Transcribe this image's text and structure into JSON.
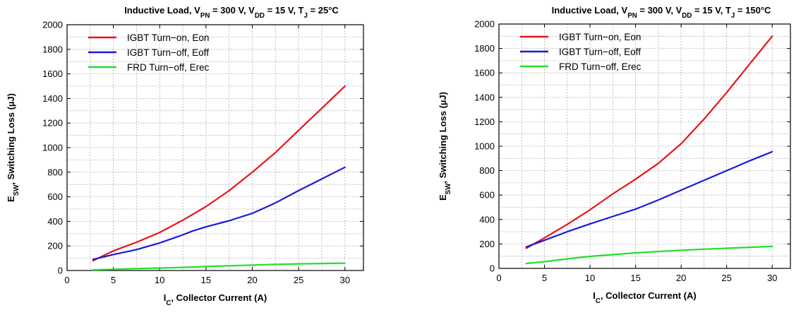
{
  "chart_data": [
    {
      "type": "line",
      "title": "Inductive Load, VPN = 300 V, VDD = 15 V, TJ = 25°C",
      "title_parts": [
        {
          "text": "Inductive Load, V",
          "sub": ""
        },
        {
          "text": "",
          "sub": "PN"
        },
        {
          "text": " = 300 V, V",
          "sub": ""
        },
        {
          "text": "",
          "sub": "DD"
        },
        {
          "text": " = 15 V, T",
          "sub": ""
        },
        {
          "text": "",
          "sub": "J"
        },
        {
          "text": " = 25°C",
          "sub": ""
        }
      ],
      "xlabel": "IC, Collector Current (A)",
      "xlabel_parts": [
        {
          "text": "I",
          "sub": ""
        },
        {
          "text": "",
          "sub": "C"
        },
        {
          "text": ", Collector Current (A)",
          "sub": ""
        }
      ],
      "ylabel": "ESW, Switching Loss (µJ)",
      "ylabel_parts": [
        {
          "text": "E",
          "sub": ""
        },
        {
          "text": "",
          "sub": "SW"
        },
        {
          "text": ", Switching Loss (µJ)",
          "sub": ""
        }
      ],
      "xlim": [
        0,
        32
      ],
      "ylim": [
        0,
        2000
      ],
      "x_ticks": [
        0,
        5,
        10,
        15,
        20,
        25,
        30
      ],
      "y_ticks": [
        0,
        200,
        400,
        600,
        800,
        1000,
        1200,
        1400,
        1600,
        1800,
        2000
      ],
      "grid": true,
      "legend_position": "top-left",
      "series": [
        {
          "name": "IGBT Turn−on, Eon",
          "color": "#e8141b",
          "x": [
            2.8,
            5,
            7.5,
            10,
            12.5,
            15,
            17.5,
            20,
            22.5,
            25,
            27.5,
            30
          ],
          "y": [
            80,
            160,
            230,
            310,
            410,
            520,
            650,
            800,
            960,
            1140,
            1320,
            1500
          ]
        },
        {
          "name": "IGBT Turn−off, Eoff",
          "color": "#1b1bd8",
          "x": [
            2.8,
            5,
            7.5,
            10,
            12.5,
            13.5,
            15,
            17.5,
            20,
            22.5,
            25,
            27.5,
            30
          ],
          "y": [
            90,
            130,
            170,
            225,
            290,
            320,
            355,
            405,
            465,
            550,
            650,
            745,
            840
          ]
        },
        {
          "name": "FRD Turn−off, Erec",
          "color": "#22e02a",
          "x": [
            2.8,
            5,
            7.5,
            10,
            12.5,
            15,
            17.5,
            20,
            22.5,
            25,
            27.5,
            30
          ],
          "y": [
            5,
            10,
            15,
            20,
            25,
            32,
            38,
            44,
            50,
            54,
            57,
            60
          ]
        }
      ]
    },
    {
      "type": "line",
      "title": "Inductive Load, VPN = 300 V, VDD = 15 V, TJ = 150°C",
      "title_parts": [
        {
          "text": "Inductive Load, V",
          "sub": ""
        },
        {
          "text": "",
          "sub": "PN"
        },
        {
          "text": " = 300 V, V",
          "sub": ""
        },
        {
          "text": "",
          "sub": "DD"
        },
        {
          "text": " = 15 V, T",
          "sub": ""
        },
        {
          "text": "",
          "sub": "J"
        },
        {
          "text": " = 150°C",
          "sub": ""
        }
      ],
      "xlabel": "IC, Collector Current (A)",
      "xlabel_parts": [
        {
          "text": "I",
          "sub": ""
        },
        {
          "text": "",
          "sub": "C"
        },
        {
          "text": ", Collector Current (A)",
          "sub": ""
        }
      ],
      "ylabel": "ESW, Switching Loss (µJ)",
      "ylabel_parts": [
        {
          "text": "E",
          "sub": ""
        },
        {
          "text": "",
          "sub": "SW"
        },
        {
          "text": ", Switching Loss (µJ)",
          "sub": ""
        }
      ],
      "xlim": [
        0,
        32
      ],
      "ylim": [
        0,
        2000
      ],
      "x_ticks": [
        0,
        5,
        10,
        15,
        20,
        25,
        30
      ],
      "y_ticks": [
        0,
        200,
        400,
        600,
        800,
        1000,
        1200,
        1400,
        1600,
        1800,
        2000
      ],
      "grid": true,
      "legend_position": "top-left",
      "series": [
        {
          "name": "IGBT Turn−on, Eon",
          "color": "#e8141b",
          "x": [
            3,
            5,
            7.5,
            10,
            12.5,
            15,
            17.5,
            20,
            22.5,
            25,
            27.5,
            30
          ],
          "y": [
            165,
            250,
            360,
            480,
            610,
            730,
            860,
            1020,
            1220,
            1440,
            1670,
            1900
          ]
        },
        {
          "name": "IGBT Turn−off, Eoff",
          "color": "#1b1bd8",
          "x": [
            3,
            5,
            7.5,
            10,
            12.5,
            15,
            17.5,
            20,
            22.5,
            25,
            27.5,
            30
          ],
          "y": [
            175,
            230,
            300,
            365,
            425,
            485,
            560,
            640,
            720,
            800,
            880,
            955
          ]
        },
        {
          "name": "FRD Turn−off, Erec",
          "color": "#22e02a",
          "x": [
            3,
            5,
            7.5,
            10,
            12.5,
            15,
            17.5,
            20,
            22.5,
            25,
            27.5,
            30
          ],
          "y": [
            40,
            55,
            78,
            98,
            113,
            127,
            138,
            148,
            157,
            165,
            173,
            180
          ]
        }
      ]
    }
  ]
}
